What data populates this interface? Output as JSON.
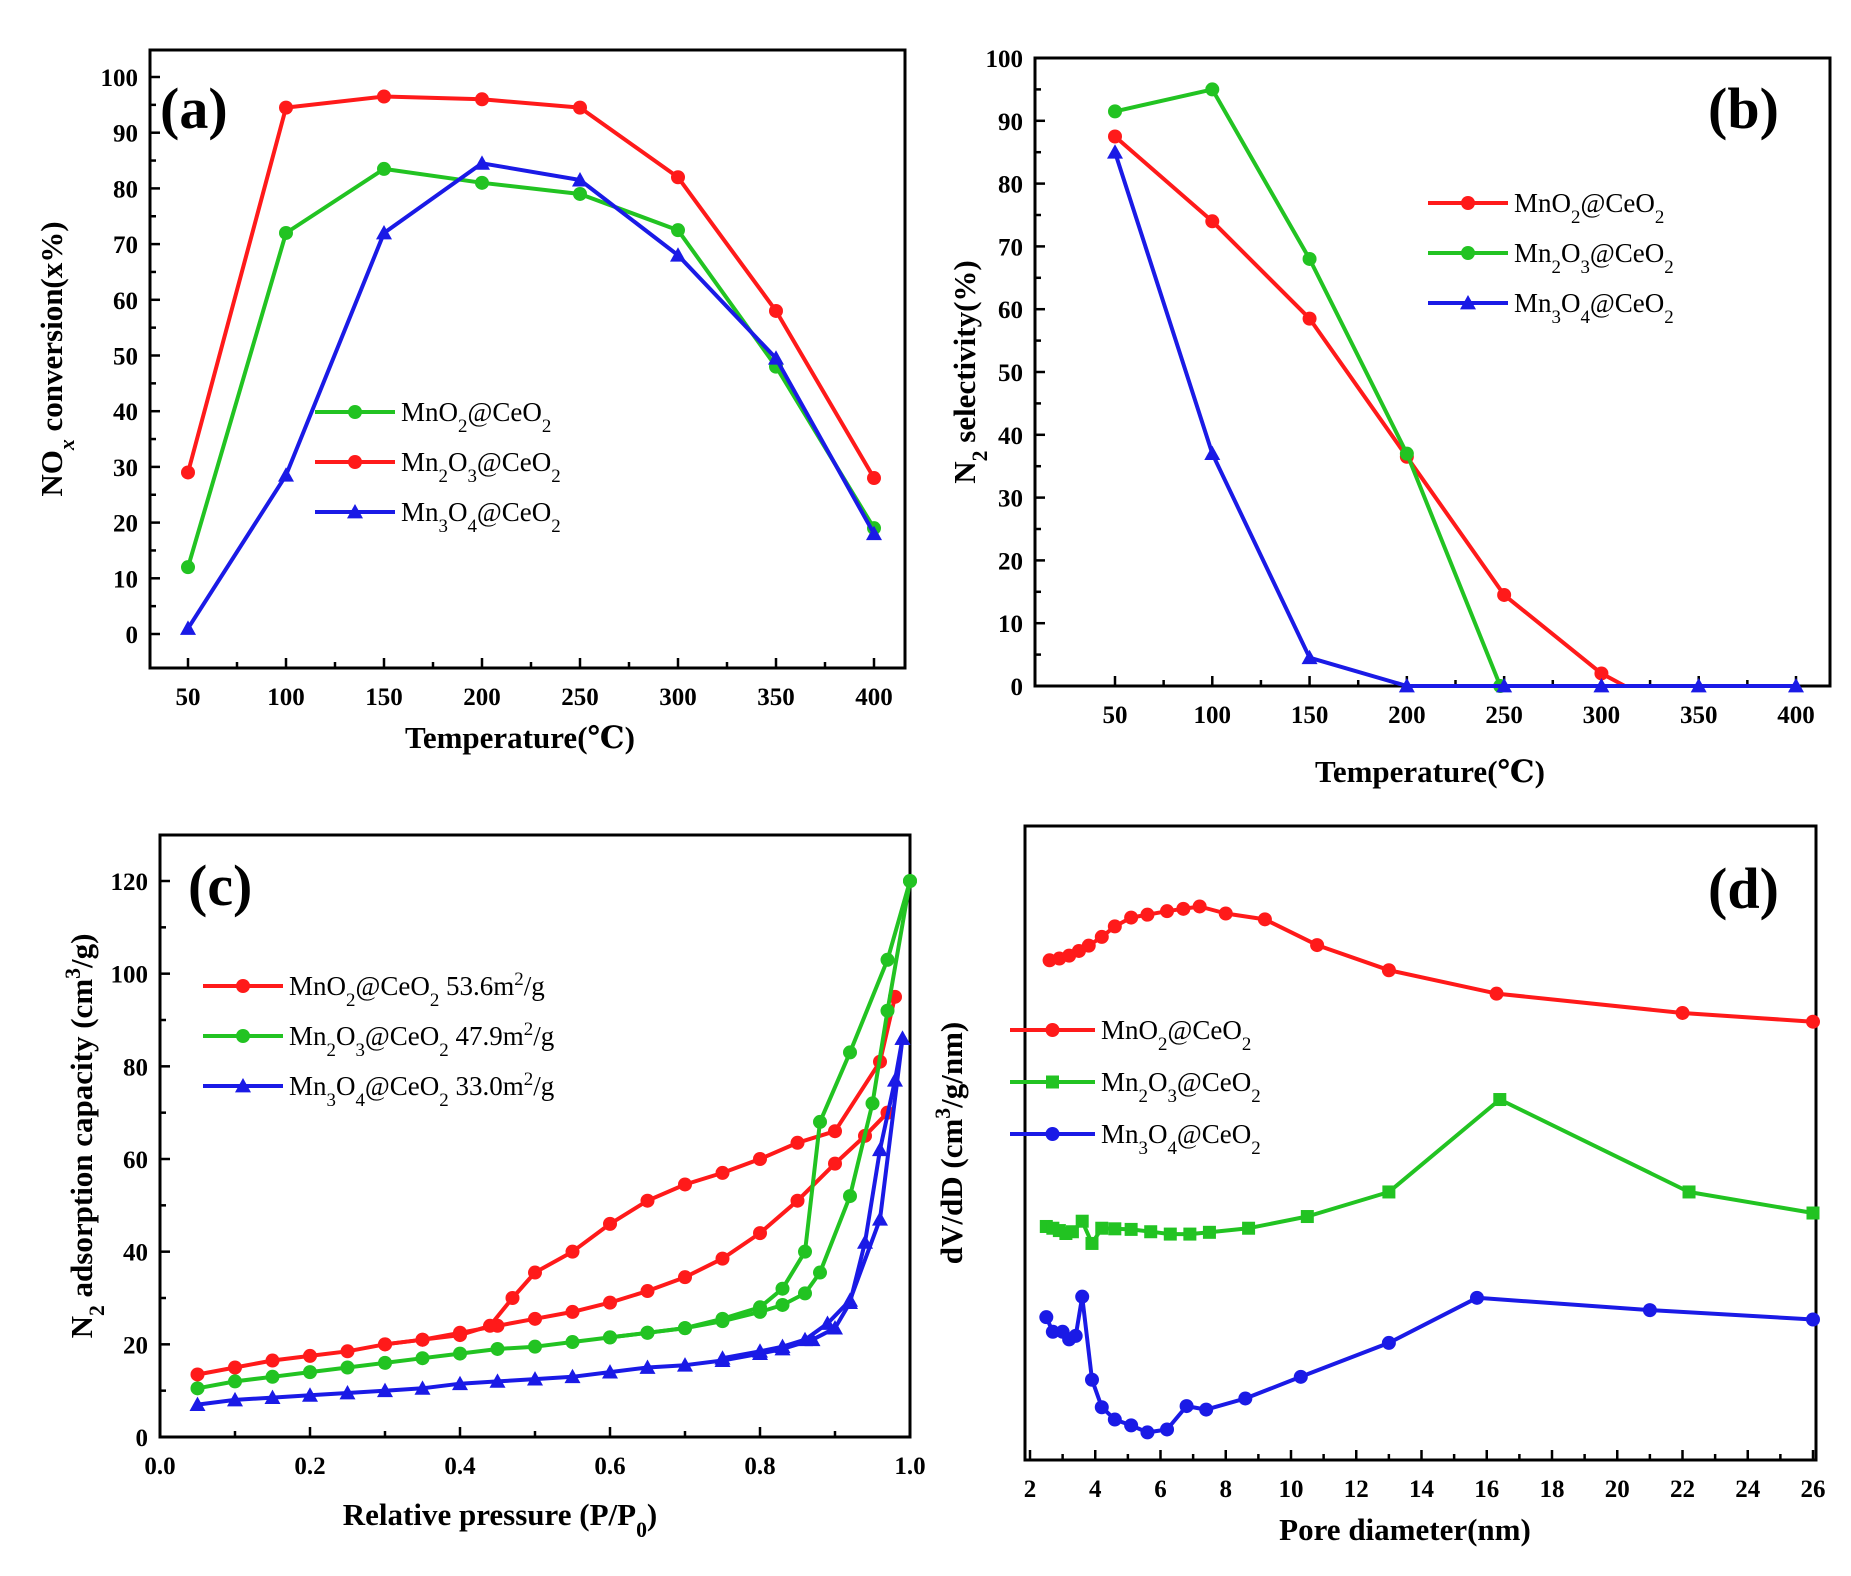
{
  "colors": {
    "red": "#ff1a1a",
    "green": "#22c322",
    "blue": "#1a1ae6",
    "axis": "#000000"
  },
  "chart_data": [
    {
      "id": "a",
      "type": "line",
      "panel_label": "(a)",
      "xlabel": "Temperature(℃)",
      "ylabel": "NOx conversion(x%)",
      "xlim": [
        40,
        410
      ],
      "ylim": [
        -5,
        105
      ],
      "xticks": [
        "50",
        "100",
        "150",
        "200",
        "250",
        "300",
        "350",
        "400"
      ],
      "yticks": [
        "0",
        "10",
        "20",
        "30",
        "40",
        "50",
        "60",
        "70",
        "80",
        "90",
        "100"
      ],
      "legend_position": "center",
      "series": [
        {
          "name": "MnO2@CeO2",
          "color": "green",
          "marker": "circle",
          "x": [
            50,
            100,
            150,
            200,
            250,
            300,
            350,
            400
          ],
          "y": [
            12,
            72,
            83.5,
            81,
            79,
            72.5,
            48,
            19
          ]
        },
        {
          "name": "Mn2O3@CeO2",
          "color": "red",
          "marker": "circle",
          "x": [
            50,
            100,
            150,
            200,
            250,
            300,
            350,
            400
          ],
          "y": [
            29,
            94.5,
            96.5,
            96,
            94.5,
            82,
            58,
            28
          ]
        },
        {
          "name": "Mn3O4@CeO2",
          "color": "blue",
          "marker": "triangle",
          "x": [
            50,
            100,
            150,
            200,
            250,
            300,
            350,
            400
          ],
          "y": [
            1,
            28.5,
            72,
            84.5,
            81.5,
            68,
            49.5,
            18
          ]
        }
      ]
    },
    {
      "id": "b",
      "type": "line",
      "panel_label": "(b)",
      "xlabel": "Temperature(℃)",
      "ylabel": "N2 selectivity(%)",
      "xlim": [
        0,
        420
      ],
      "ylim": [
        0,
        100
      ],
      "xticks": [
        "50",
        "100",
        "150",
        "200",
        "250",
        "300",
        "350",
        "400"
      ],
      "yticks": [
        "0",
        "10",
        "20",
        "30",
        "40",
        "50",
        "60",
        "70",
        "80",
        "90",
        "100"
      ],
      "legend_position": "top-right",
      "series": [
        {
          "name": "MnO2@CeO2",
          "color": "red",
          "marker": "circle",
          "x": [
            50,
            100,
            150,
            200,
            250,
            300,
            312
          ],
          "y": [
            87.5,
            74,
            58.5,
            36.5,
            14.5,
            2,
            0
          ],
          "marked": [
            true,
            true,
            true,
            true,
            true,
            true,
            false
          ]
        },
        {
          "name": "Mn2O3@CeO2",
          "color": "green",
          "marker": "circle",
          "x": [
            50,
            100,
            150,
            200,
            248
          ],
          "y": [
            91.5,
            95,
            68,
            37,
            0
          ]
        },
        {
          "name": "Mn3O4@CeO2",
          "color": "blue",
          "marker": "triangle",
          "x": [
            50,
            100,
            150,
            200,
            250,
            300,
            350,
            400
          ],
          "y": [
            85,
            37,
            4.5,
            0,
            0,
            0,
            0,
            0
          ]
        }
      ]
    },
    {
      "id": "c",
      "type": "line",
      "panel_label": "(c)",
      "xlabel": "Relative pressure (P/P0)",
      "ylabel": "N2 adsorption capacity (cm3/g)",
      "xlim": [
        0,
        1.0
      ],
      "ylim": [
        0,
        130
      ],
      "xticks": [
        "0.0",
        "0.2",
        "0.4",
        "0.6",
        "0.8",
        "1.0"
      ],
      "yticks": [
        "0",
        "20",
        "40",
        "60",
        "80",
        "100",
        "120"
      ],
      "legend_position": "top-left",
      "series": [
        {
          "name": "MnO2@CeO2",
          "area": "53.6m2/g",
          "color": "red",
          "marker": "circle",
          "x": [
            0.05,
            0.1,
            0.15,
            0.2,
            0.25,
            0.3,
            0.35,
            0.4,
            0.45,
            0.5,
            0.55,
            0.6,
            0.65,
            0.7,
            0.75,
            0.8,
            0.85,
            0.9,
            0.94,
            0.97
          ],
          "y": [
            13.5,
            15,
            16.5,
            17.5,
            18.5,
            20,
            21,
            22.5,
            24,
            25.5,
            27,
            29,
            31.5,
            34.5,
            38.5,
            44,
            51,
            59,
            65,
            70
          ]
        },
        {
          "name": "MnO2@CeO2 desorption",
          "color": "red",
          "marker": "circle",
          "x": [
            0.98,
            0.96,
            0.9,
            0.85,
            0.8,
            0.75,
            0.7,
            0.65,
            0.6,
            0.55,
            0.5,
            0.47,
            0.44,
            0.4,
            0.35,
            0.3
          ],
          "y": [
            95,
            81,
            66,
            63.5,
            60,
            57,
            54.5,
            51,
            46,
            40,
            35.5,
            30,
            24,
            22,
            21,
            20
          ]
        },
        {
          "name": "Mn2O3@CeO2",
          "area": "47.9m2/g",
          "color": "green",
          "marker": "circle",
          "x": [
            0.05,
            0.1,
            0.15,
            0.2,
            0.25,
            0.3,
            0.35,
            0.4,
            0.45,
            0.5,
            0.55,
            0.6,
            0.65,
            0.7,
            0.75,
            0.8,
            0.83,
            0.86,
            0.88,
            0.92,
            0.95,
            0.97,
            1.0
          ],
          "y": [
            10.5,
            12,
            13,
            14,
            15,
            16,
            17,
            18,
            19,
            19.5,
            20.5,
            21.5,
            22.5,
            23.5,
            25,
            27,
            28.5,
            31,
            35.5,
            52,
            72,
            92,
            120
          ]
        },
        {
          "name": "Mn2O3@CeO2 desorption",
          "color": "green",
          "marker": "circle",
          "x": [
            1.0,
            0.97,
            0.92,
            0.88,
            0.86,
            0.83,
            0.8,
            0.75,
            0.7,
            0.65,
            0.6
          ],
          "y": [
            120,
            103,
            83,
            68,
            40,
            32,
            28,
            25.5,
            23.5,
            22.5,
            21.5
          ]
        },
        {
          "name": "Mn3O4@CeO2",
          "area": "33.0m2/g",
          "color": "blue",
          "marker": "triangle",
          "x": [
            0.05,
            0.1,
            0.15,
            0.2,
            0.25,
            0.3,
            0.35,
            0.4,
            0.45,
            0.5,
            0.55,
            0.6,
            0.65,
            0.7,
            0.75,
            0.8,
            0.83,
            0.87,
            0.9,
            0.92,
            0.94,
            0.96,
            0.98,
            0.99
          ],
          "y": [
            7,
            8,
            8.5,
            9,
            9.5,
            10,
            10.5,
            11.5,
            12,
            12.5,
            13,
            14,
            15,
            15.5,
            16.5,
            18,
            19,
            21,
            23.5,
            29,
            42,
            62,
            77,
            86
          ]
        },
        {
          "name": "Mn3O4@CeO2 desorption",
          "color": "blue",
          "marker": "triangle",
          "x": [
            0.99,
            0.96,
            0.92,
            0.89,
            0.86,
            0.83,
            0.8,
            0.75
          ],
          "y": [
            86,
            47,
            29.5,
            24.5,
            21,
            19.5,
            18.5,
            17
          ]
        }
      ]
    },
    {
      "id": "d",
      "type": "line",
      "panel_label": "(d)",
      "xlabel": "Pore diameter(nm)",
      "ylabel": "dV/dD (cm3/g/nm)",
      "xlim": [
        2,
        26
      ],
      "ylim": [
        0,
        100
      ],
      "xticks": [
        "2",
        "4",
        "6",
        "8",
        "10",
        "12",
        "14",
        "16",
        "18",
        "20",
        "22",
        "24",
        "26"
      ],
      "yticks": [],
      "legend_position": "center-left",
      "series": [
        {
          "name": "MnO2@CeO2",
          "color": "red",
          "marker": "circle",
          "x": [
            2.6,
            2.9,
            3.2,
            3.5,
            3.8,
            4.2,
            4.6,
            5.1,
            5.6,
            6.2,
            6.7,
            7.2,
            8.0,
            9.2,
            10.8,
            13.0,
            16.3,
            22.0,
            26.0
          ],
          "y": [
            82,
            82.3,
            82.8,
            83.6,
            84.5,
            86,
            87.8,
            89.3,
            89.8,
            90.4,
            90.8,
            91.2,
            90,
            89,
            84.6,
            80.3,
            76.3,
            73,
            71.5
          ]
        },
        {
          "name": "Mn2O3@CeO2",
          "color": "green",
          "marker": "square",
          "x": [
            2.5,
            2.7,
            2.9,
            3.1,
            3.3,
            3.6,
            3.9,
            4.2,
            4.6,
            5.1,
            5.7,
            6.3,
            6.9,
            7.5,
            8.7,
            10.5,
            13.0,
            16.4,
            22.2,
            26.0
          ],
          "y": [
            36.5,
            36.2,
            35.8,
            35.3,
            35.6,
            37.4,
            33.6,
            36.2,
            36.1,
            36,
            35.6,
            35.2,
            35.2,
            35.5,
            36.2,
            38.2,
            42.4,
            58.2,
            42.4,
            38.8
          ]
        },
        {
          "name": "Mn3O4@CeO2",
          "color": "blue",
          "marker": "circle",
          "x": [
            2.5,
            2.7,
            3.0,
            3.2,
            3.4,
            3.6,
            3.9,
            4.2,
            4.6,
            5.1,
            5.6,
            6.2,
            6.8,
            7.4,
            8.6,
            10.3,
            13.0,
            15.7,
            21.0,
            26.0
          ],
          "y": [
            21,
            18.5,
            18.5,
            17.2,
            17.8,
            24.5,
            10.3,
            5.6,
            3.5,
            2.5,
            1.3,
            1.8,
            5.8,
            5.2,
            7.1,
            10.8,
            16.6,
            24.3,
            22.2,
            20.6
          ]
        }
      ]
    }
  ]
}
